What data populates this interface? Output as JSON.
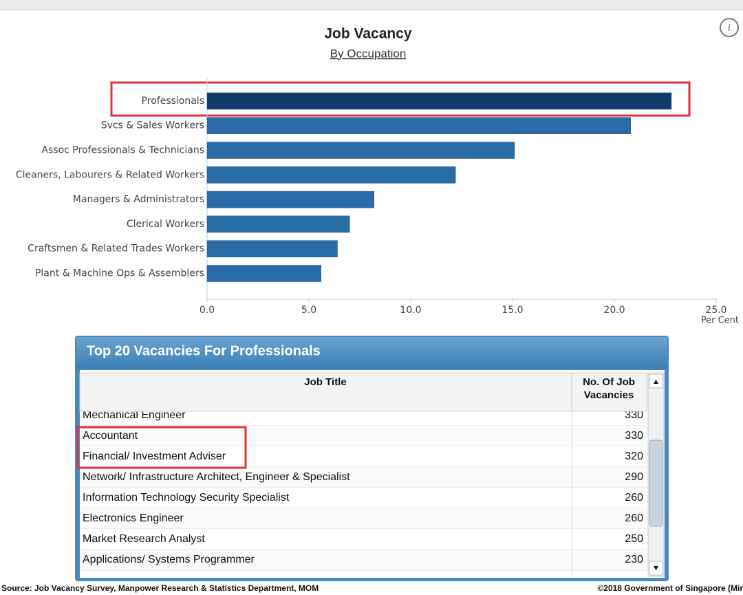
{
  "chart_data": {
    "type": "bar",
    "orientation": "horizontal",
    "title": "Job Vacancy",
    "subtitle": "By Occupation",
    "categories": [
      "Professionals",
      "Svcs & Sales Workers",
      "Assoc Professionals & Technicians",
      "Cleaners, Labourers & Related Workers",
      "Managers & Administrators",
      "Clerical Workers",
      "Craftsmen & Related Trades Workers",
      "Plant & Machine Ops & Assemblers"
    ],
    "values": [
      22.8,
      20.8,
      15.1,
      12.2,
      8.2,
      7.0,
      6.4,
      5.6
    ],
    "colors": [
      "#0f3b6b",
      "#2a6ca8",
      "#2a6ca8",
      "#2a6ca8",
      "#2a6ca8",
      "#2a6ca8",
      "#2a6ca8",
      "#2a6ca8"
    ],
    "xlabel": "Per Cent",
    "xlim": [
      0,
      25
    ],
    "xticks": [
      {
        "value": 0,
        "label": "0.0"
      },
      {
        "value": 5,
        "label": "5.0"
      },
      {
        "value": 10,
        "label": "10.0"
      },
      {
        "value": 15,
        "label": "15.0"
      },
      {
        "value": 20,
        "label": "20.0"
      },
      {
        "value": 25,
        "label": "25.0"
      }
    ]
  },
  "table": {
    "title": "Top 20 Vacancies For Professionals",
    "header": [
      "Job Title",
      "No. Of Job Vacancies"
    ],
    "rows": [
      [
        "Mechanical Engineer",
        330
      ],
      [
        "Accountant",
        330
      ],
      [
        "Financial/ Investment Adviser",
        320
      ],
      [
        "Network/ Infrastructure Architect, Engineer & Specialist",
        290
      ],
      [
        "Information Technology Security Specialist",
        260
      ],
      [
        "Electronics Engineer",
        260
      ],
      [
        "Market Research Analyst",
        250
      ],
      [
        "Applications/ Systems Programmer",
        230
      ]
    ]
  },
  "footer": {
    "source": "Source: Job Vacancy Survey, Manpower Research & Statistics Department, MOM",
    "copyright": "©2018 Government of Singapore (Mir"
  }
}
